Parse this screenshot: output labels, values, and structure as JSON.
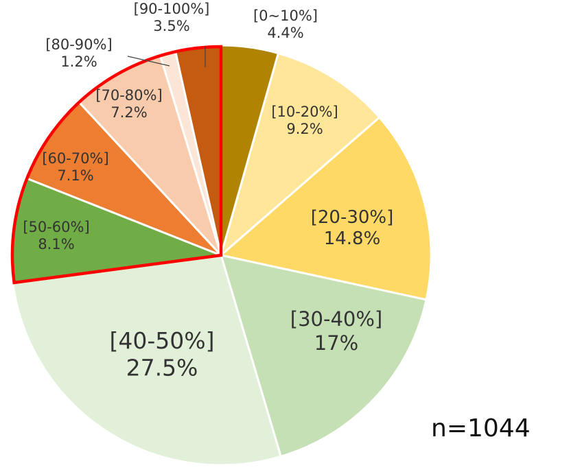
{
  "chart_data": {
    "type": "pie",
    "title": "",
    "slices": [
      {
        "label": "[0~10%]",
        "value": 4.4,
        "value_text": "4.4%",
        "color": "#B08400"
      },
      {
        "label": "[10-20%]",
        "value": 9.2,
        "value_text": "9.2%",
        "color": "#FFE699"
      },
      {
        "label": "[20-30%]",
        "value": 14.8,
        "value_text": "14.8%",
        "color": "#FFD966"
      },
      {
        "label": "[30-40%]",
        "value": 17,
        "value_text": "17%",
        "color": "#C5E0B4"
      },
      {
        "label": "[40-50%]",
        "value": 27.5,
        "value_text": "27.5%",
        "color": "#E2F0D9"
      },
      {
        "label": "[50-60%]",
        "value": 8.1,
        "value_text": "8.1%",
        "color": "#70AD47"
      },
      {
        "label": "[60-70%]",
        "value": 7.1,
        "value_text": "7.1%",
        "color": "#ED7D31"
      },
      {
        "label": "[70-80%]",
        "value": 7.2,
        "value_text": "7.2%",
        "color": "#F8CBAD"
      },
      {
        "label": "[80-90%]",
        "value": 1.2,
        "value_text": "1.2%",
        "color": "#FBE5D6"
      },
      {
        "label": "[90-100%]",
        "value": 3.5,
        "value_text": "3.5%",
        "color": "#C55A11"
      }
    ],
    "highlight": {
      "from": "[50-60%]",
      "to": "[90-100%]",
      "color": "#FF0000"
    },
    "note": "n=1044"
  }
}
